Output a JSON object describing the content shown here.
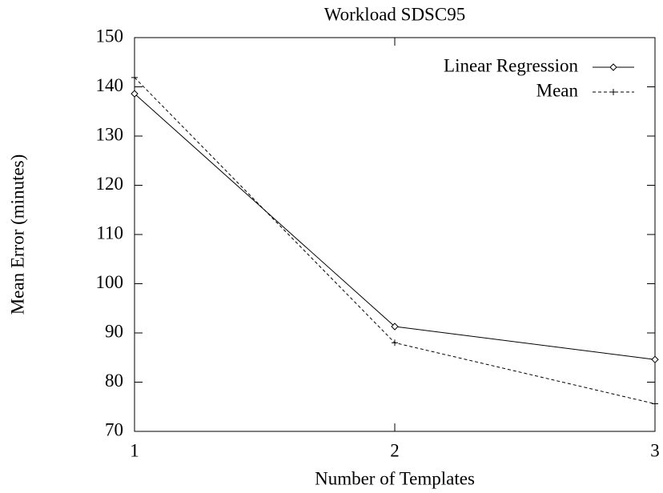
{
  "chart_data": {
    "type": "line",
    "title": "Workload SDSC95",
    "xlabel": "Number of Templates",
    "ylabel": "Mean Error (minutes)",
    "x": [
      1,
      2,
      3
    ],
    "series": [
      {
        "name": "Linear Regression",
        "color": "#000000",
        "dashed": false,
        "marker": "diamond",
        "values": [
          138.6,
          91.3,
          84.6
        ]
      },
      {
        "name": "Mean",
        "color": "#000000",
        "dashed": true,
        "marker": "plus",
        "values": [
          141.9,
          88,
          75.6
        ]
      }
    ],
    "xlim": [
      1,
      3
    ],
    "xticks": [
      1,
      2,
      3
    ],
    "ylim": [
      70,
      150
    ],
    "yticks": [
      70,
      80,
      90,
      100,
      110,
      120,
      130,
      140,
      150
    ],
    "grid": false,
    "legend": "top-right"
  }
}
